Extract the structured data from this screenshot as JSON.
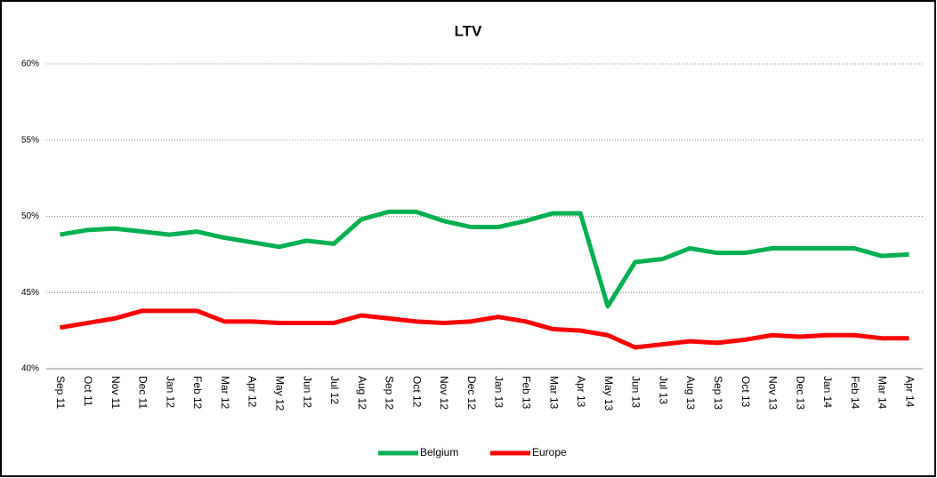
{
  "chart_data": {
    "type": "line",
    "title": "LTV",
    "categories": [
      "Sep 11",
      "Oct 11",
      "Nov 11",
      "Dec 11",
      "Jan 12",
      "Feb 12",
      "Mar 12",
      "Apr 12",
      "May 12",
      "Jun 12",
      "Jul 12",
      "Aug 12",
      "Sep 12",
      "Oct 12",
      "Nov 12",
      "Dec 12",
      "Jan 13",
      "Feb 13",
      "Mar 13",
      "Apr 13",
      "May 13",
      "Jun 13",
      "Jul 13",
      "Aug 13",
      "Sep 13",
      "Oct 13",
      "Nov 13",
      "Dec 13",
      "Jan 14",
      "Feb 14",
      "Mar 14",
      "Apr 14"
    ],
    "series": [
      {
        "name": "Belgium",
        "color": "#00b050",
        "values": [
          48.8,
          49.1,
          49.2,
          49.0,
          48.8,
          49.0,
          48.6,
          48.3,
          48.0,
          48.4,
          48.2,
          49.8,
          50.3,
          50.3,
          49.7,
          49.3,
          49.3,
          49.7,
          50.2,
          50.2,
          44.1,
          47.0,
          47.2,
          47.9,
          47.6,
          47.6,
          47.9,
          47.9,
          47.9,
          47.9,
          47.4,
          47.5
        ]
      },
      {
        "name": "Europe",
        "color": "#ff0000",
        "values": [
          42.7,
          43.0,
          43.3,
          43.8,
          43.8,
          43.8,
          43.1,
          43.1,
          43.0,
          43.0,
          43.0,
          43.5,
          43.3,
          43.1,
          43.0,
          43.1,
          43.4,
          43.1,
          42.6,
          42.5,
          42.2,
          41.4,
          41.6,
          41.8,
          41.7,
          41.9,
          42.2,
          42.1,
          42.2,
          42.2,
          42.0,
          42.0
        ]
      }
    ],
    "ylim": [
      40,
      60
    ],
    "yticks": [
      {
        "value": 40,
        "label": "40%"
      },
      {
        "value": 45,
        "label": "45%"
      },
      {
        "value": 50,
        "label": "50%"
      },
      {
        "value": 55,
        "label": "55%"
      },
      {
        "value": 60,
        "label": "60%"
      }
    ],
    "grid": true,
    "legend": "bottom"
  }
}
